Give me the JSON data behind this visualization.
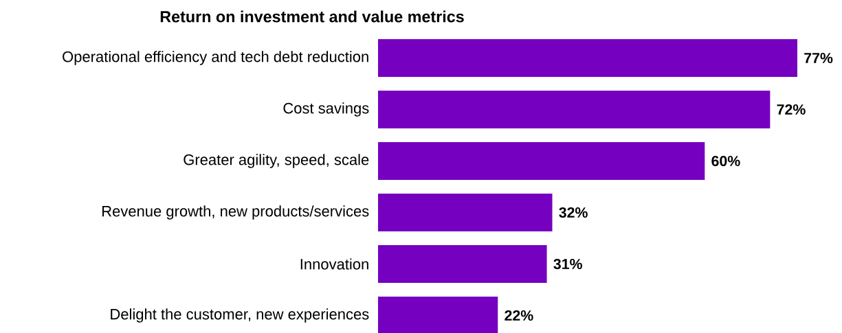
{
  "chart_data": {
    "type": "bar",
    "orientation": "horizontal",
    "title": "Return on investment and value metrics",
    "categories": [
      "Operational efficiency and tech debt reduction",
      "Cost savings",
      "Greater agility, speed, scale",
      "Revenue growth, new products/services",
      "Innovation",
      "Delight the customer, new experiences"
    ],
    "values": [
      77,
      72,
      60,
      32,
      31,
      22
    ],
    "value_labels": [
      "77%",
      "72%",
      "60%",
      "32%",
      "31%",
      "22%"
    ],
    "color": "#7500c0"
  }
}
